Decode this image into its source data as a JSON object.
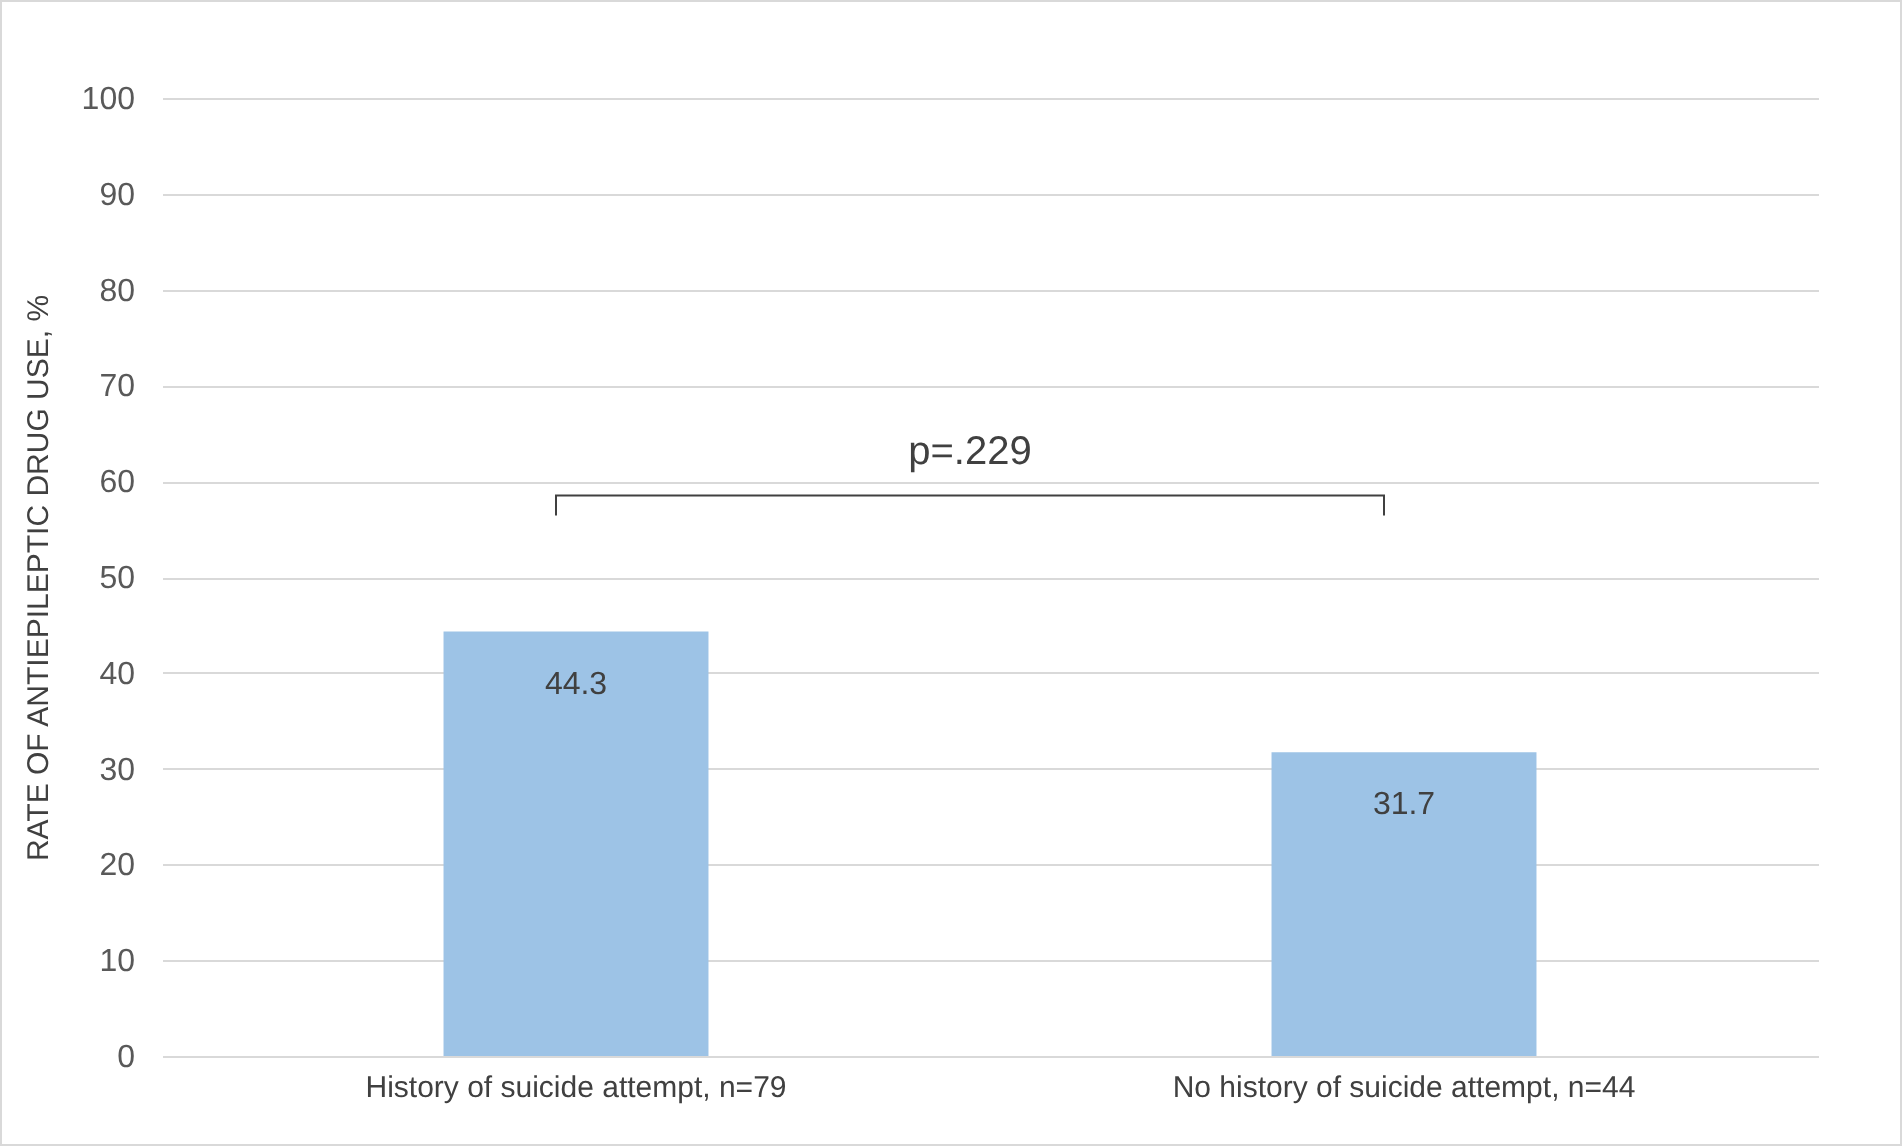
{
  "chart_data": {
    "type": "bar",
    "ylabel": "RATE OF ANTIEPILEPTIC DRUG USE, %",
    "categories": [
      "History of suicide attempt, n=79",
      "No history of suicide attempt, n=44"
    ],
    "values": [
      44.3,
      31.7
    ],
    "color": "#9dc3e6",
    "data_labels": true,
    "ylim": [
      0,
      100
    ],
    "yticks": [
      0,
      10,
      20,
      30,
      40,
      50,
      60,
      70,
      80,
      90,
      100
    ],
    "grid": "y",
    "annotations": [
      "p=.229"
    ]
  }
}
